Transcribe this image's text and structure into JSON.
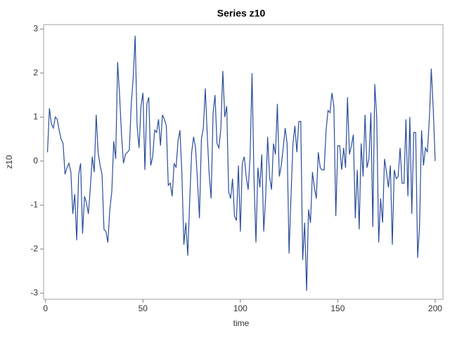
{
  "chart_data": {
    "type": "line",
    "title": "Series z10",
    "xlabel": "time",
    "ylabel": "z10",
    "x": [
      1,
      2,
      3,
      4,
      5,
      6,
      7,
      8,
      9,
      10,
      11,
      12,
      13,
      14,
      15,
      16,
      17,
      18,
      19,
      20,
      21,
      22,
      23,
      24,
      25,
      26,
      27,
      28,
      29,
      30,
      31,
      32,
      33,
      34,
      35,
      36,
      37,
      38,
      39,
      40,
      41,
      42,
      43,
      44,
      45,
      46,
      47,
      48,
      49,
      50,
      51,
      52,
      53,
      54,
      55,
      56,
      57,
      58,
      59,
      60,
      61,
      62,
      63,
      64,
      65,
      66,
      67,
      68,
      69,
      70,
      71,
      72,
      73,
      74,
      75,
      76,
      77,
      78,
      79,
      80,
      81,
      82,
      83,
      84,
      85,
      86,
      87,
      88,
      89,
      90,
      91,
      92,
      93,
      94,
      95,
      96,
      97,
      98,
      99,
      100,
      101,
      102,
      103,
      104,
      105,
      106,
      107,
      108,
      109,
      110,
      111,
      112,
      113,
      114,
      115,
      116,
      117,
      118,
      119,
      120,
      121,
      122,
      123,
      124,
      125,
      126,
      127,
      128,
      129,
      130,
      131,
      132,
      133,
      134,
      135,
      136,
      137,
      138,
      139,
      140,
      141,
      142,
      143,
      144,
      145,
      146,
      147,
      148,
      149,
      150,
      151,
      152,
      153,
      154,
      155,
      156,
      157,
      158,
      159,
      160,
      161,
      162,
      163,
      164,
      165,
      166,
      167,
      168,
      169,
      170,
      171,
      172,
      173,
      174,
      175,
      176,
      177,
      178,
      179,
      180,
      181,
      182,
      183,
      184,
      185,
      186,
      187,
      188,
      189,
      190,
      191,
      192,
      193,
      194,
      195,
      196,
      197,
      198,
      199,
      200
    ],
    "series": [
      {
        "name": "z10",
        "color": "#2a4d9b",
        "values": [
          0.2,
          1.2,
          0.85,
          0.75,
          1.0,
          0.95,
          0.7,
          0.5,
          0.4,
          -0.3,
          -0.15,
          -0.05,
          -0.25,
          -1.2,
          -0.75,
          -1.8,
          -0.3,
          -0.05,
          -1.65,
          -0.8,
          -0.95,
          -1.2,
          -0.6,
          0.1,
          -0.25,
          1.05,
          0.2,
          -0.1,
          -0.3,
          -1.55,
          -1.6,
          -1.85,
          -1.1,
          -0.7,
          0.45,
          0.05,
          2.25,
          1.5,
          0.6,
          -0.05,
          0.15,
          0.2,
          0.25,
          1.3,
          1.9,
          2.85,
          0.8,
          0.3,
          1.25,
          1.55,
          -0.2,
          1.3,
          1.45,
          -0.1,
          0.1,
          0.7,
          0.65,
          0.95,
          0.35,
          1.05,
          0.95,
          0.8,
          -0.55,
          -0.5,
          -0.8,
          -0.05,
          -0.15,
          0.45,
          0.7,
          -0.3,
          -1.9,
          -1.4,
          -2.15,
          -0.9,
          0.2,
          0.55,
          0.3,
          -0.45,
          -1.3,
          0.5,
          0.75,
          1.65,
          0.6,
          -0.3,
          -0.85,
          1.1,
          1.5,
          0.4,
          0.3,
          0.75,
          2.05,
          1.0,
          1.25,
          -0.7,
          -0.85,
          -0.4,
          -1.25,
          -1.35,
          -0.1,
          -1.6,
          -0.05,
          0.1,
          -0.35,
          -0.65,
          0.1,
          2.0,
          -0.4,
          -1.85,
          -0.15,
          -0.6,
          0.15,
          -1.6,
          -0.8,
          0.55,
          -0.35,
          -0.65,
          0.4,
          0.15,
          1.3,
          -0.35,
          -0.1,
          0.3,
          0.75,
          0.4,
          -2.1,
          -0.8,
          0.4,
          0.8,
          0.2,
          0.9,
          0.9,
          -2.25,
          -1.4,
          -2.95,
          -1.1,
          -1.4,
          -0.25,
          -0.6,
          -0.85,
          0.2,
          -0.15,
          -0.2,
          -0.2,
          0.7,
          1.15,
          1.1,
          1.55,
          1.25,
          -1.25,
          0.35,
          0.35,
          -0.2,
          0.3,
          -0.15,
          1.45,
          0.15,
          0.35,
          0.6,
          -1.3,
          -0.2,
          -1.55,
          0.4,
          -0.35,
          1.05,
          -0.15,
          0.05,
          1.1,
          -1.5,
          1.75,
          1.0,
          -1.85,
          -0.85,
          -1.4,
          0.05,
          -0.25,
          -0.6,
          -0.1,
          -1.9,
          -0.2,
          -0.4,
          -0.35,
          0.3,
          -0.5,
          -0.5,
          0.95,
          -0.8,
          1.0,
          -1.2,
          0.65,
          0.65,
          -2.2,
          -1.45,
          0.7,
          -0.1,
          0.3,
          0.2,
          0.95,
          2.1,
          1.2,
          0.0
        ]
      }
    ],
    "xlim": [
      -1,
      204
    ],
    "xticks": [
      0,
      50,
      100,
      150,
      200
    ],
    "ylim": [
      -3.14,
      3.1
    ],
    "yticks": [
      -3,
      -2,
      -1,
      0,
      1,
      2,
      3
    ]
  }
}
